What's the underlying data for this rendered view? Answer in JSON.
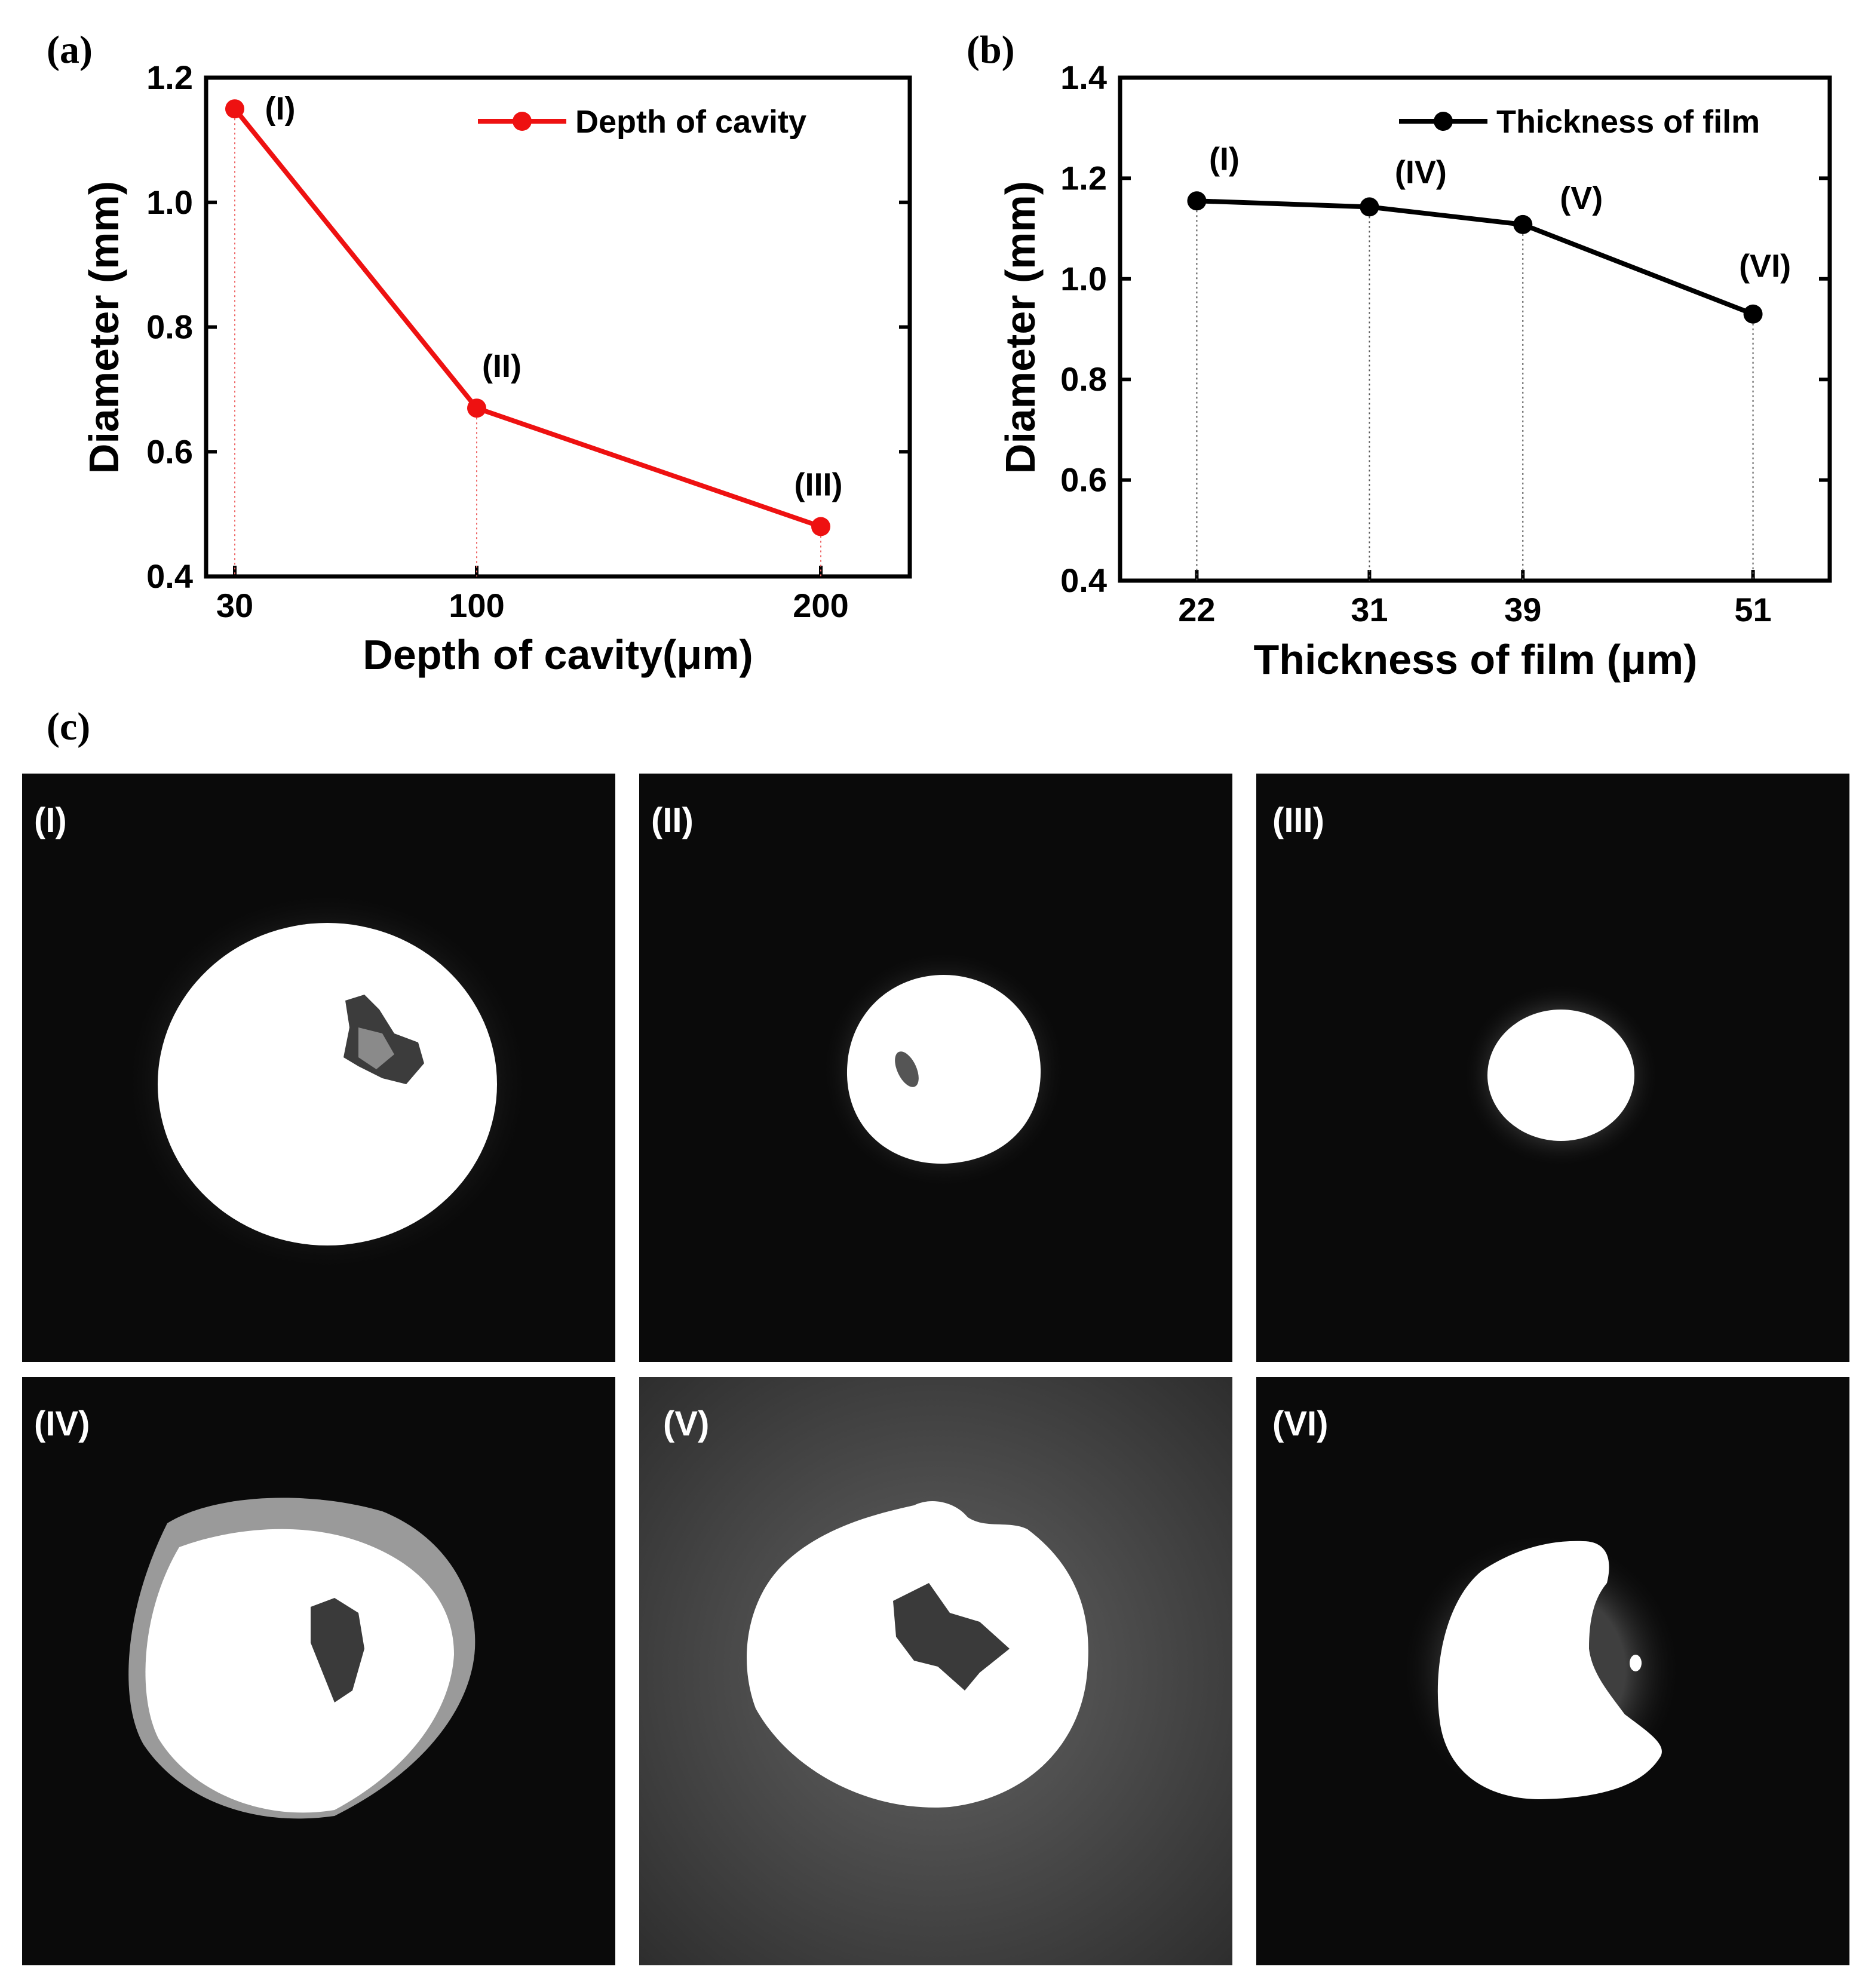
{
  "panel_letters": {
    "a": "(a)",
    "b": "(b)",
    "c": "(c)"
  },
  "chart_data": [
    {
      "type": "line",
      "panel": "(a)",
      "x_scale": "categorical",
      "categories": [
        "30",
        "100",
        "200"
      ],
      "series": [
        {
          "name": "Depth of cavity",
          "color": "#ee1111",
          "values": [
            1.15,
            0.67,
            0.48
          ],
          "point_labels": [
            "(I)",
            "(II)",
            "(III)"
          ]
        }
      ],
      "xlabel": "Depth of cavity(μm)",
      "ylabel": "Diameter (mm)",
      "ylim": [
        0.4,
        1.2
      ],
      "yticks": [
        "0.4",
        "0.6",
        "0.8",
        "1.0",
        "1.2"
      ],
      "grid": false,
      "drop_lines": true,
      "legend_position": "top-right"
    },
    {
      "type": "line",
      "panel": "(b)",
      "x_scale": "linear",
      "x": [
        22,
        31,
        39,
        51
      ],
      "xlim": [
        18,
        55
      ],
      "xticks": [
        "22",
        "31",
        "39",
        "51"
      ],
      "series": [
        {
          "name": "Thickness of film",
          "color": "#000000",
          "values": [
            1.155,
            1.143,
            1.108,
            0.93
          ],
          "point_labels": [
            "(I)",
            "(IV)",
            "(V)",
            "(VI)"
          ]
        }
      ],
      "xlabel": "Thickness of film (μm)",
      "ylabel": "Diameter (mm)",
      "ylim": [
        0.4,
        1.4
      ],
      "yticks": [
        "0.4",
        "0.6",
        "0.8",
        "1.0",
        "1.2",
        "1.4"
      ],
      "grid": false,
      "drop_lines": true,
      "legend_position": "top-right"
    }
  ],
  "micrographs": [
    {
      "label": "(I)",
      "background": "#0a0a0a"
    },
    {
      "label": "(II)",
      "background": "#0a0a0a"
    },
    {
      "label": "(III)",
      "background": "#0a0a0a"
    },
    {
      "label": "(IV)",
      "background": "#0a0a0a"
    },
    {
      "label": "(V)",
      "background": "#3e3e3e"
    },
    {
      "label": "(VI)",
      "background": "#0a0a0a"
    }
  ]
}
